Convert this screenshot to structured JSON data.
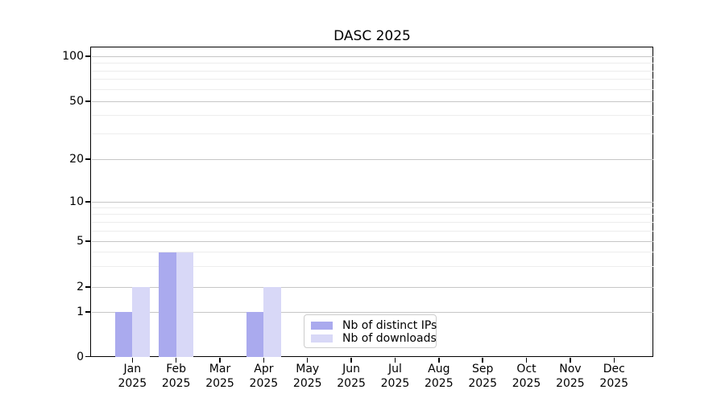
{
  "title": "DASC 2025",
  "chart_data": {
    "type": "bar",
    "title": "DASC 2025",
    "categories": [
      {
        "month": "Jan",
        "year": "2025"
      },
      {
        "month": "Feb",
        "year": "2025"
      },
      {
        "month": "Mar",
        "year": "2025"
      },
      {
        "month": "Apr",
        "year": "2025"
      },
      {
        "month": "May",
        "year": "2025"
      },
      {
        "month": "Jun",
        "year": "2025"
      },
      {
        "month": "Jul",
        "year": "2025"
      },
      {
        "month": "Aug",
        "year": "2025"
      },
      {
        "month": "Sep",
        "year": "2025"
      },
      {
        "month": "Oct",
        "year": "2025"
      },
      {
        "month": "Nov",
        "year": "2025"
      },
      {
        "month": "Dec",
        "year": "2025"
      }
    ],
    "series": [
      {
        "name": "Nb of distinct IPs",
        "color": "#aaaaee",
        "values": [
          1,
          4,
          0,
          1,
          0,
          0,
          0,
          0,
          0,
          0,
          0,
          0
        ]
      },
      {
        "name": "Nb of downloads",
        "color": "#d8d8f7",
        "values": [
          2,
          4,
          0,
          2,
          0,
          0,
          0,
          0,
          0,
          0,
          0,
          0
        ]
      }
    ],
    "xlabel": "",
    "ylabel": "",
    "y_ticks": [
      0,
      1,
      2,
      5,
      10,
      20,
      50,
      100
    ],
    "y_minor_gridlines": [
      3,
      4,
      6,
      7,
      8,
      9,
      30,
      40,
      60,
      70,
      80,
      90
    ],
    "y_scale": "symlog (linear 0-1, logarithmic above 1)",
    "ylim": [
      0,
      114
    ],
    "grid": "horizontal major and minor gridlines",
    "legend_position": "lower center, inside axes"
  },
  "colors": {
    "bar_distinct_ips": "#aaaaee",
    "bar_downloads": "#d8d8f7",
    "grid_major": "#c6c6c6",
    "grid_minor": "#ededed",
    "axis": "#000000",
    "legend_border": "#cccccc",
    "background": "#ffffff"
  }
}
